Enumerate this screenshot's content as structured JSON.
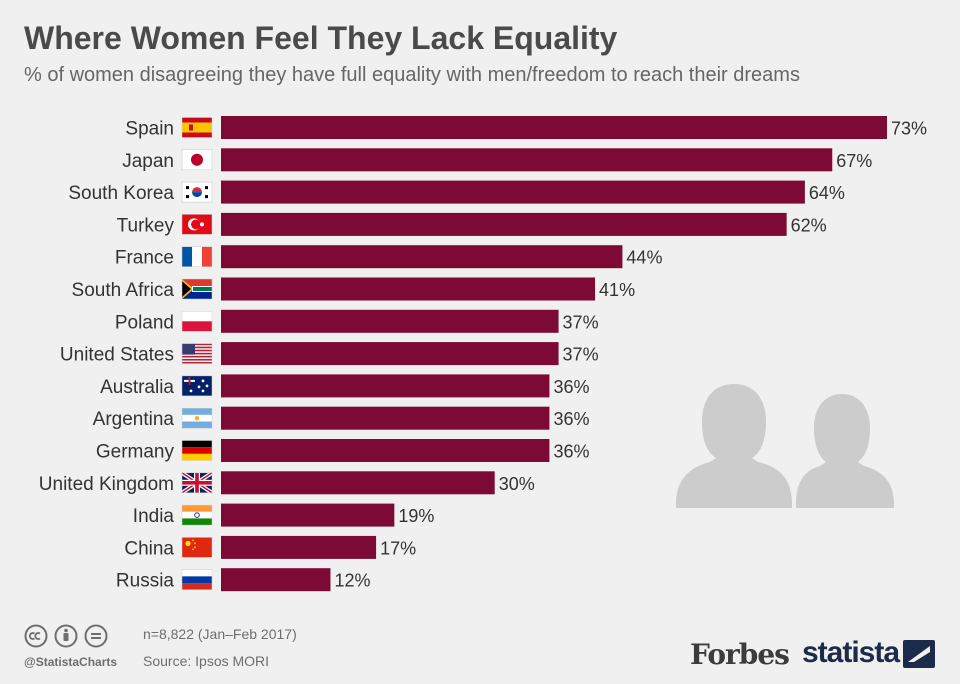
{
  "title": "Where Women Feel They Lack Equality",
  "subtitle": "% of women disagreeing they have full equality with men/freedom to reach their dreams",
  "chart_data": {
    "type": "bar",
    "orientation": "horizontal",
    "title": "Where Women Feel They Lack Equality",
    "subtitle": "% of women disagreeing they have full equality with men/freedom to reach their dreams",
    "categories": [
      "Spain",
      "Japan",
      "South Korea",
      "Turkey",
      "France",
      "South Africa",
      "Poland",
      "United States",
      "Australia",
      "Argentina",
      "Germany",
      "United Kingdom",
      "India",
      "China",
      "Russia"
    ],
    "values": [
      73,
      67,
      64,
      62,
      44,
      41,
      37,
      37,
      36,
      36,
      36,
      30,
      19,
      17,
      12
    ],
    "value_labels": [
      "73%",
      "67%",
      "64%",
      "62%",
      "44%",
      "41%",
      "37%",
      "37%",
      "36%",
      "36%",
      "36%",
      "30%",
      "19%",
      "17%",
      "12%"
    ],
    "flags": [
      "spain-flag-icon",
      "japan-flag-icon",
      "south-korea-flag-icon",
      "turkey-flag-icon",
      "france-flag-icon",
      "south-africa-flag-icon",
      "poland-flag-icon",
      "united-states-flag-icon",
      "australia-flag-icon",
      "argentina-flag-icon",
      "germany-flag-icon",
      "united-kingdom-flag-icon",
      "india-flag-icon",
      "china-flag-icon",
      "russia-flag-icon"
    ],
    "xlim": [
      0,
      73
    ],
    "bar_color": "#7d0a35",
    "xlabel": "",
    "ylabel": ""
  },
  "footer": {
    "sample": "n=8,822 (Jan–Feb 2017)",
    "source": "Source: Ipsos MORI",
    "handle": "@StatistaCharts"
  },
  "brands": {
    "forbes": "Forbes",
    "statista": "statista"
  }
}
